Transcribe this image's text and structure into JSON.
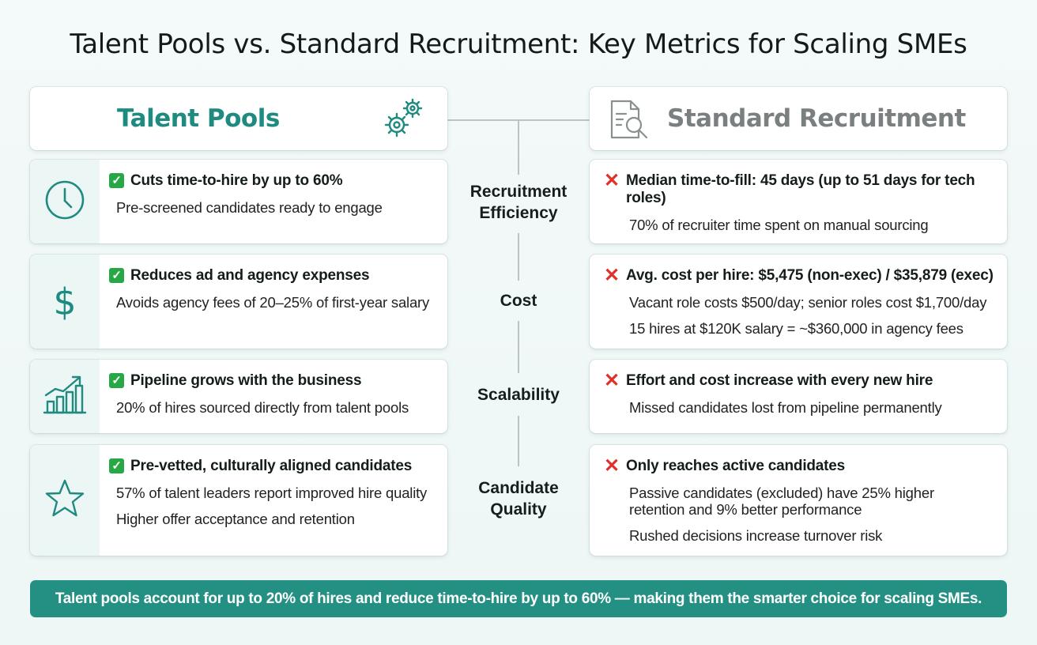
{
  "title": "Talent Pools vs. Standard Recruitment: Key Metrics for Scaling SMEs",
  "left": {
    "header": "Talent Pools",
    "header_icon": "gears-icon",
    "rows": [
      {
        "icon": "clock-icon",
        "headline": "Cuts time-to-hire by up to 60%",
        "details": [
          "Pre-screened candidates ready to engage"
        ]
      },
      {
        "icon": "dollar-icon",
        "headline": "Reduces ad and agency expenses",
        "details": [
          "Avoids agency fees of 20–25% of first-year salary"
        ]
      },
      {
        "icon": "growth-chart-icon",
        "headline": "Pipeline grows with the business",
        "details": [
          "20% of hires sourced directly from talent pools"
        ]
      },
      {
        "icon": "star-icon",
        "headline": "Pre-vetted, culturally aligned candidates",
        "details": [
          "57% of talent leaders report improved hire quality",
          "Higher offer acceptance and retention"
        ]
      }
    ]
  },
  "right": {
    "header": "Standard Recruitment",
    "header_icon": "document-search-icon",
    "rows": [
      {
        "headline": "Median time-to-fill: 45 days (up to 51 days for tech roles)",
        "details": [
          "70% of recruiter time spent on manual sourcing"
        ]
      },
      {
        "headline": "Avg. cost per hire: $5,475 (non-exec) / $35,879 (exec)",
        "details": [
          "Vacant role costs $500/day; senior roles cost $1,700/day",
          "15 hires at $120K salary = ~$360,000 in agency fees"
        ]
      },
      {
        "headline": "Effort and cost increase with every new hire",
        "details": [
          "Missed candidates lost from pipeline permanently"
        ]
      },
      {
        "headline": "Only reaches active candidates",
        "details": [
          "Passive candidates (excluded) have 25% higher retention and 9% better performance",
          "Rushed decisions increase turnover risk"
        ]
      }
    ]
  },
  "categories": [
    "Recruitment Efficiency",
    "Cost",
    "Scalability",
    "Candidate Quality"
  ],
  "footer": "Talent pools account for up to 20% of hires and reduce time-to-hire by up to 60% — making them the smarter choice for scaling SMEs.",
  "colors": {
    "accent": "#249084",
    "check": "#27a745",
    "cross": "#e0302a",
    "muted": "#7a7f80"
  }
}
